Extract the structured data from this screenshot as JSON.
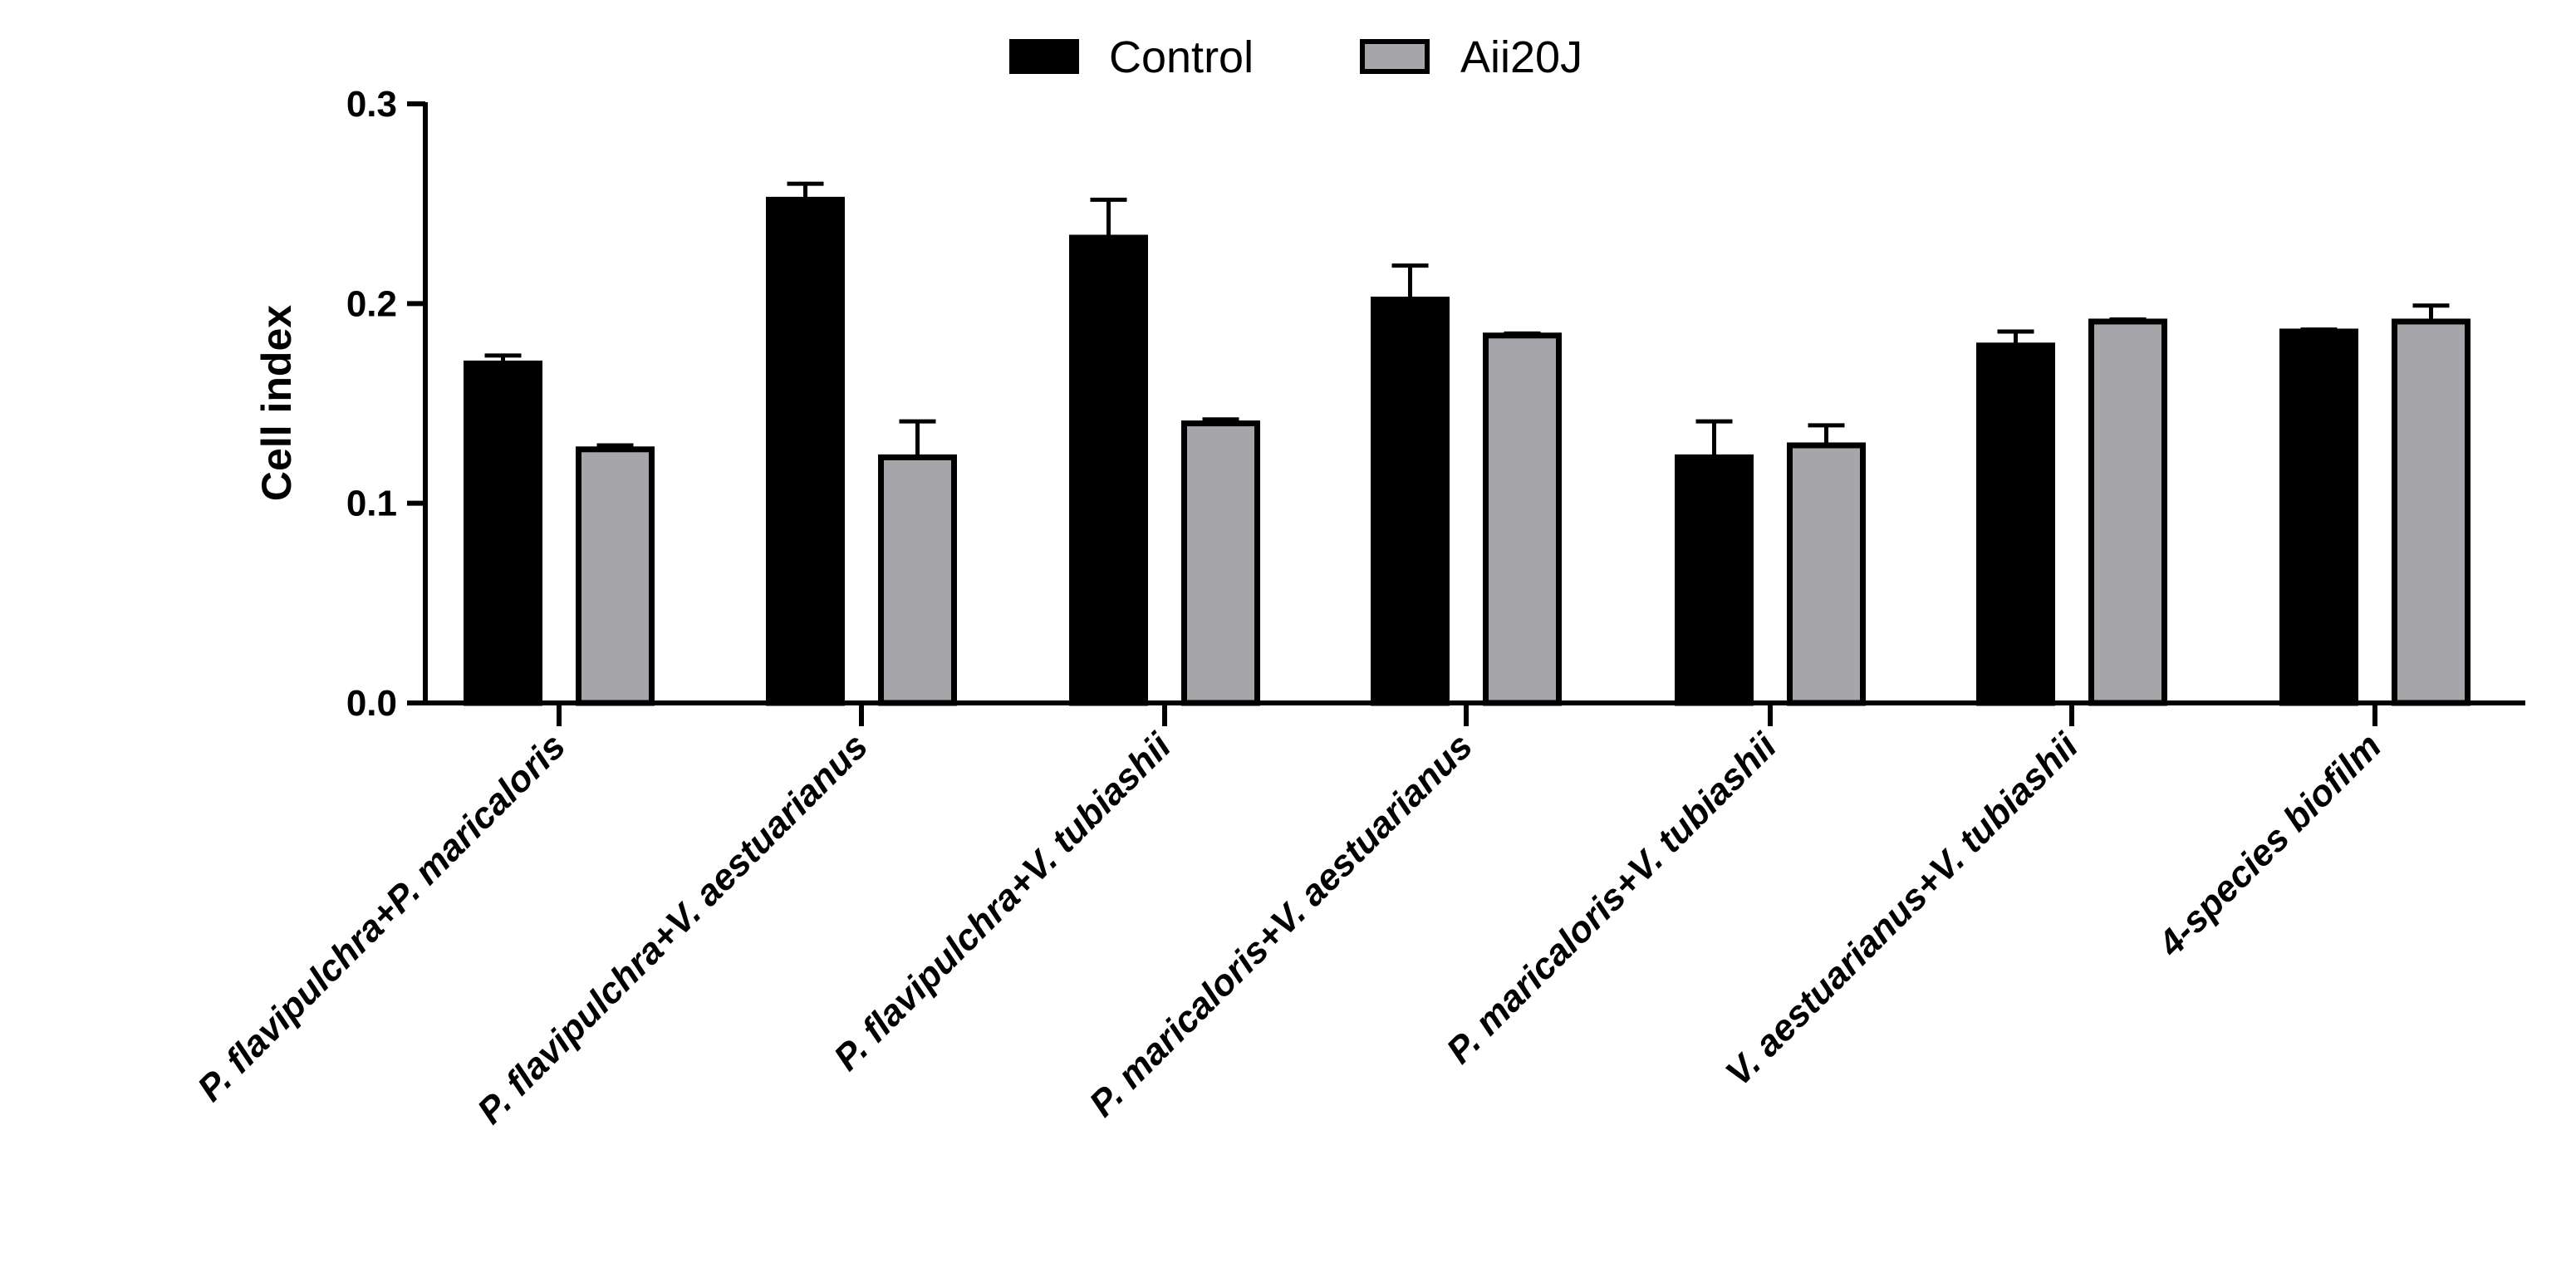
{
  "chart_data": {
    "type": "bar",
    "title": "",
    "xlabel": "",
    "ylabel": "Cell index",
    "ylim": [
      0,
      0.3
    ],
    "yticks": [
      0.0,
      0.1,
      0.2,
      0.3
    ],
    "ytick_labels": [
      "0.0",
      "0.1",
      "0.2",
      "0.3"
    ],
    "legend_position": "top-center",
    "categories": [
      "P. flavipulchra+P. maricaloris",
      "P. flavipulchra+V. aestuarianus",
      "P. flavipulchra+V. tubiashii",
      "P. maricaloris+V. aestuarianus",
      "P. maricaloris+V. tubiashii",
      "V. aestuarianus+V. tubiashii",
      "4-species biofilm"
    ],
    "series": [
      {
        "name": "Control",
        "color": "#000000",
        "values": [
          0.17,
          0.252,
          0.233,
          0.202,
          0.123,
          0.179,
          0.186
        ],
        "errors": [
          0.004,
          0.008,
          0.019,
          0.017,
          0.018,
          0.007,
          0.001
        ]
      },
      {
        "name": "Aii20J",
        "color": "#a6a6aa",
        "values": [
          0.127,
          0.123,
          0.14,
          0.184,
          0.129,
          0.191,
          0.191
        ],
        "errors": [
          0.002,
          0.018,
          0.002,
          0.001,
          0.01,
          0.001,
          0.008
        ]
      }
    ]
  }
}
